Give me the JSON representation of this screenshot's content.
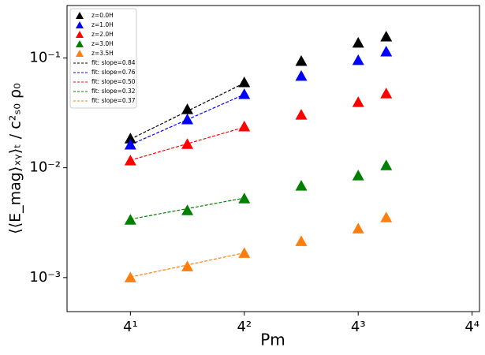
{
  "chart_data": {
    "type": "scatter",
    "x_label": "Pm",
    "y_label": "⟨⟨E_mag⟩ₓᵧ⟩ₜ / c²ₛ₀ ρ₀",
    "x": [
      4,
      8,
      16,
      32,
      64,
      90
    ],
    "series": [
      {
        "name": "z=0.0H",
        "color": "#000000",
        "values": [
          0.0184,
          0.034,
          0.0598,
          0.0935,
          0.137,
          0.156
        ]
      },
      {
        "name": "z=1.0H",
        "color": "#0000ff",
        "values": [
          0.0162,
          0.0275,
          0.0467,
          0.0684,
          0.0952,
          0.114
        ]
      },
      {
        "name": "z=2.0H",
        "color": "#ff0000",
        "values": [
          0.0116,
          0.0164,
          0.0237,
          0.0303,
          0.0395,
          0.0474
        ]
      },
      {
        "name": "z=3.0H",
        "color": "#008000",
        "values": [
          0.00335,
          0.00409,
          0.00524,
          0.00684,
          0.00847,
          0.0105
        ]
      },
      {
        "name": "z=3.5H",
        "color": "#ff7f0e",
        "values": [
          0.001,
          0.00126,
          0.00167,
          0.00214,
          0.00279,
          0.00352
        ]
      }
    ],
    "fits": [
      {
        "name": "fit: slope=0.84",
        "color": "#000000",
        "x": [
          4,
          16
        ],
        "values": [
          0.0182,
          0.059
        ]
      },
      {
        "name": "fit: slope=0.76",
        "color": "#0000ff",
        "x": [
          4,
          16
        ],
        "values": [
          0.0162,
          0.0465
        ]
      },
      {
        "name": "fit: slope=0.50",
        "color": "#ff0000",
        "x": [
          4,
          16
        ],
        "values": [
          0.0117,
          0.0234
        ]
      },
      {
        "name": "fit: slope=0.32",
        "color": "#008000",
        "x": [
          4,
          16
        ],
        "values": [
          0.0034,
          0.0053
        ]
      },
      {
        "name": "fit: slope=0.37",
        "color": "#ff7f0e",
        "x": [
          4,
          16
        ],
        "values": [
          0.00101,
          0.00168
        ]
      }
    ],
    "xlim": [
      1.85,
      280
    ],
    "ylim": [
      0.00049,
      0.3
    ],
    "xticks": [
      {
        "value": 4,
        "label": "4¹"
      },
      {
        "value": 16,
        "label": "4²"
      },
      {
        "value": 64,
        "label": "4³"
      },
      {
        "value": 256,
        "label": "4⁴"
      }
    ],
    "yticks": [
      {
        "value": 0.001,
        "label": "10⁻³"
      },
      {
        "value": 0.01,
        "label": "10⁻²"
      },
      {
        "value": 0.1,
        "label": "10⁻¹"
      }
    ],
    "xscale": "log",
    "yscale": "log",
    "legend": "upper left"
  }
}
